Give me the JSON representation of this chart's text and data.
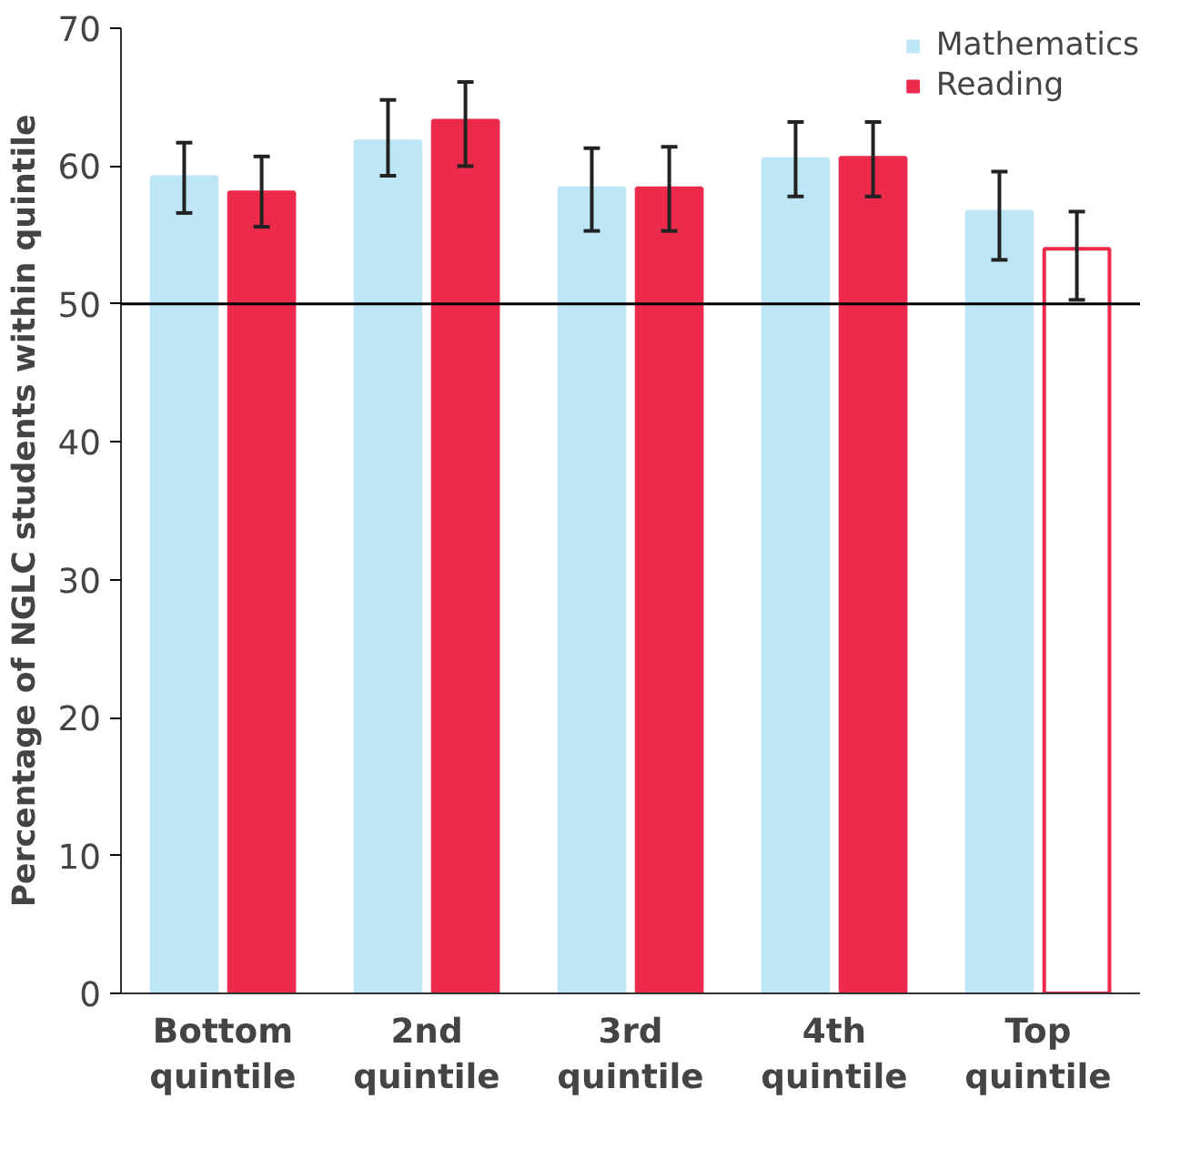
{
  "chart_data": {
    "type": "bar",
    "ylabel": "Percentage of NGLC students within quintile",
    "categories": [
      "Bottom\nquintile",
      "2nd\nquintile",
      "3rd\nquintile",
      "4th\nquintile",
      "Top\nquintile"
    ],
    "series": [
      {
        "name": "Mathematics",
        "color": "#bde6f7",
        "values": [
          59.2,
          61.8,
          58.4,
          60.5,
          56.7
        ],
        "errors": [
          [
            56.6,
            61.7
          ],
          [
            59.3,
            64.8
          ],
          [
            55.3,
            61.3
          ],
          [
            57.8,
            63.2
          ],
          [
            53.2,
            59.6
          ]
        ]
      },
      {
        "name": "Reading",
        "color": "#ec2a4c",
        "colors": [
          "#ec2a4c",
          "#ec2a4c",
          "#ec2a4c",
          "#ec2a4c",
          "#ffffff"
        ],
        "values": [
          58.1,
          63.3,
          58.4,
          60.6,
          54.0
        ],
        "errors": [
          [
            55.6,
            60.7
          ],
          [
            60.0,
            66.1
          ],
          [
            55.3,
            61.4
          ],
          [
            57.8,
            63.2
          ],
          [
            50.3,
            56.7
          ]
        ]
      }
    ],
    "ylim": [
      0,
      70
    ],
    "yticks": [
      0,
      10,
      20,
      30,
      40,
      50,
      60,
      70
    ],
    "grid": false,
    "legend": "top right",
    "ref_lines": [
      {
        "axis": "y",
        "value": 50,
        "color": "#000000"
      }
    ]
  }
}
